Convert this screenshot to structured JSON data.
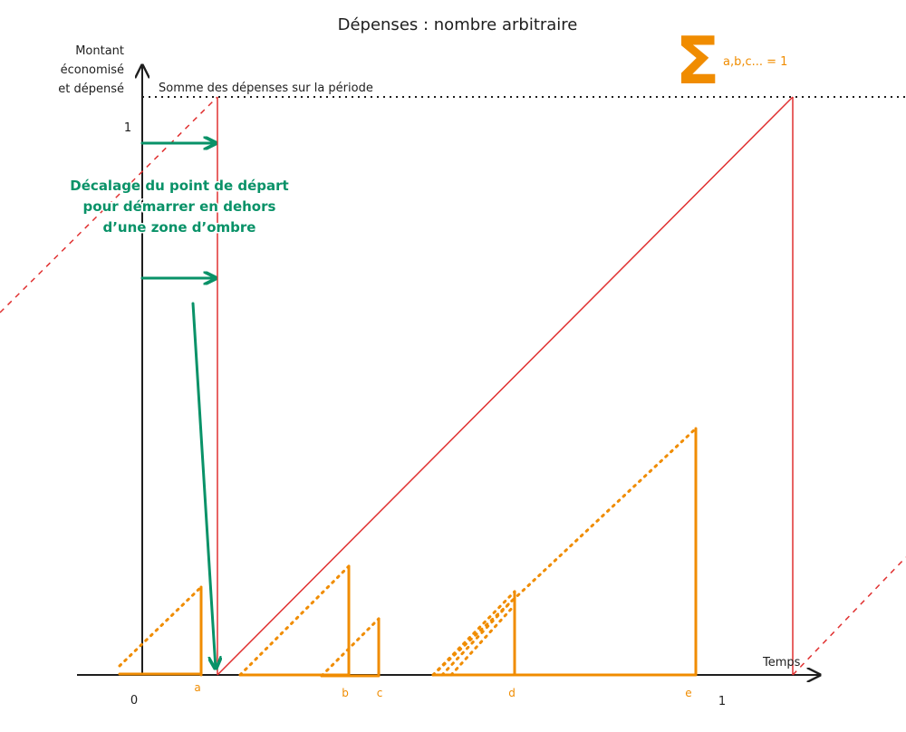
{
  "title": "Dépenses : nombre arbitraire",
  "y_axis": {
    "label": [
      "Montant",
      "économisé",
      "et dépensé"
    ],
    "tick": "1"
  },
  "x_axis": {
    "label": "Temps",
    "ticks": [
      "0",
      "1"
    ]
  },
  "sum_line_label": "Somme des dépenses sur la période",
  "expenses": [
    "a",
    "b",
    "c",
    "d",
    "e"
  ],
  "annotation": [
    "Décalage du point de départ",
    "pour démarrer en dehors",
    "d’une zone d’ombre"
  ],
  "sum_formula": {
    "symbol": "Σ",
    "subscript": "a,b,c... = 1"
  }
}
